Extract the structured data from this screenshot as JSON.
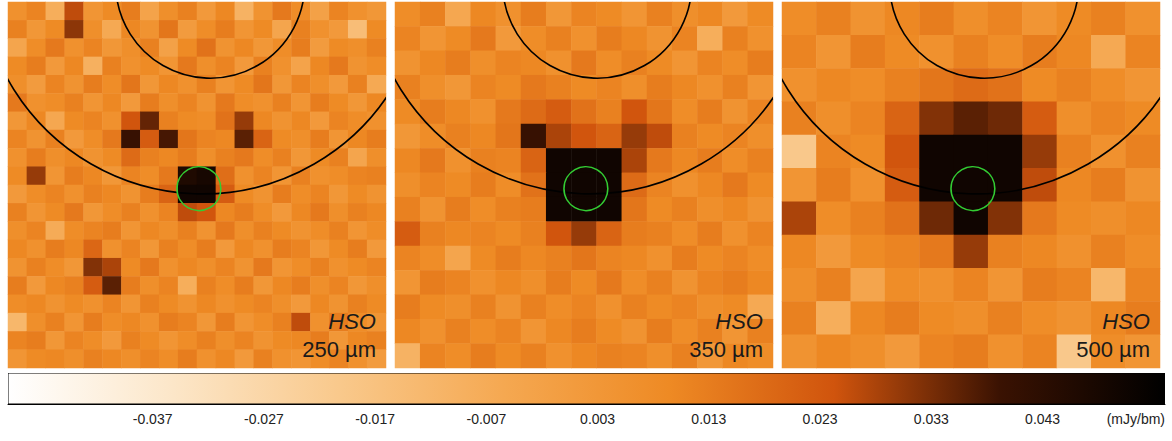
{
  "chart_data": {
    "type": "heatmap",
    "tick_labels": false,
    "panels": [
      {
        "labels": [
          "HSO",
          "250 µm"
        ],
        "cells": [
          [
            0.006,
            0.011,
            -0.008,
            0.026,
            0.004,
            0.009,
            0.013,
            -0.003,
            0.007,
            0.012,
            0.002,
            0.01,
            -0.01,
            0.005,
            0.014,
            0.008,
            -0.002,
            0.011,
            0.006,
            0.003
          ],
          [
            0.012,
            0.003,
            0.009,
            0.031,
            0.007,
            -0.006,
            0.01,
            0.005,
            0.015,
            0.001,
            0.008,
            0.013,
            0.004,
            0.009,
            -0.004,
            0.012,
            0.006,
            0.002,
            -0.015,
            0.009
          ],
          [
            -0.004,
            0.008,
            0.014,
            0.006,
            0.011,
            0.003,
            0.007,
            0.012,
            -0.002,
            0.009,
            0.016,
            0.005,
            0.01,
            0.003,
            0.008,
            0.013,
            0.001,
            0.009,
            0.007,
            0.012
          ],
          [
            0.009,
            0.013,
            0.002,
            0.01,
            -0.009,
            0.012,
            0.006,
            0.009,
            0.004,
            0.014,
            0.007,
            0.011,
            0.002,
            0.012,
            0.006,
            -0.003,
            0.01,
            0.014,
            0.005,
            0.008
          ],
          [
            0.007,
            0.001,
            0.011,
            0.005,
            0.013,
            0.008,
            0.015,
            0.003,
            0.01,
            0.006,
            0.012,
            0.004,
            0.009,
            0.015,
            0.003,
            0.011,
            0.007,
            0.002,
            0.012,
            -0.006
          ],
          [
            0.014,
            0.006,
            0.008,
            0.012,
            0.004,
            0.01,
            0.002,
            0.013,
            0.007,
            0.011,
            0.005,
            0.014,
            0.008,
            0.006,
            0.012,
            0.004,
            0.013,
            0.009,
            0.003,
            0.01
          ],
          [
            0.003,
            0.01,
            -0.005,
            0.009,
            0.011,
            0.006,
            0.024,
            0.035,
            0.012,
            0.009,
            0.008,
            0.016,
            0.03,
            0.01,
            0.005,
            0.01,
            0.002,
            0.011,
            0.008,
            0.006
          ],
          [
            0.011,
            0.005,
            0.012,
            0.002,
            0.008,
            0.014,
            0.04,
            0.022,
            0.038,
            0.015,
            0.011,
            0.01,
            0.036,
            0.02,
            0.009,
            0.007,
            0.013,
            0.004,
            0.01,
            0.013
          ],
          [
            0.006,
            0.013,
            0.007,
            0.01,
            0.005,
            0.009,
            0.018,
            0.012,
            0.01,
            0.013,
            0.007,
            0.012,
            0.014,
            0.008,
            0.012,
            0.003,
            0.009,
            0.012,
            -0.004,
            0.007
          ],
          [
            0.009,
            0.03,
            0.004,
            0.013,
            0.01,
            0.003,
            0.011,
            0.008,
            0.014,
            0.046,
            0.048,
            0.017,
            0.006,
            0.011,
            0.004,
            0.012,
            0.006,
            0.008,
            0.011,
            0.012
          ],
          [
            0.002,
            0.008,
            0.011,
            0.006,
            0.012,
            0.01,
            0.005,
            0.013,
            0.02,
            0.05,
            0.05,
            0.022,
            0.009,
            0.005,
            0.013,
            0.008,
            0.011,
            0.003,
            0.009,
            0.005
          ],
          [
            0.012,
            0.004,
            0.009,
            0.014,
            0.003,
            0.008,
            0.012,
            0.006,
            0.011,
            0.026,
            0.024,
            0.01,
            0.013,
            0.008,
            0.002,
            0.01,
            0.014,
            0.007,
            0.012,
            0.01
          ],
          [
            0.007,
            0.011,
            -0.007,
            0.008,
            0.011,
            0.013,
            0.004,
            0.01,
            0.007,
            0.012,
            0.005,
            0.014,
            0.007,
            0.012,
            0.009,
            0.005,
            0.008,
            0.012,
            0.004,
            0.008
          ],
          [
            0.01,
            0.006,
            0.013,
            0.01,
            0.019,
            0.006,
            0.011,
            0.003,
            0.012,
            0.008,
            0.013,
            0.002,
            0.01,
            0.006,
            0.013,
            0.011,
            0.003,
            0.009,
            0.013,
            0.002
          ],
          [
            0.005,
            0.012,
            0.008,
            0.003,
            0.032,
            0.028,
            0.009,
            0.014,
            0.006,
            0.01,
            0.007,
            0.011,
            0.005,
            0.014,
            0.004,
            0.008,
            0.012,
            0.006,
            0.009,
            0.011
          ],
          [
            0.013,
            0.002,
            0.01,
            0.012,
            0.022,
            0.036,
            0.013,
            0.007,
            0.011,
            -0.008,
            0.012,
            0.008,
            0.013,
            0.003,
            0.01,
            0.013,
            0.007,
            0.011,
            0.003,
            0.007
          ],
          [
            0.008,
            0.01,
            0.005,
            0.009,
            0.006,
            0.011,
            0.004,
            0.012,
            0.009,
            0.005,
            0.01,
            0.006,
            0.009,
            0.011,
            0.007,
            0.002,
            0.01,
            0.005,
            0.012,
            0.009
          ],
          [
            -0.012,
            0.007,
            0.012,
            0.004,
            0.013,
            0.008,
            0.01,
            0.006,
            0.013,
            0.011,
            0.003,
            0.013,
            0.004,
            0.008,
            0.012,
            0.026,
            0.006,
            0.013,
            0.008,
            0.004
          ],
          [
            0.011,
            0.013,
            0.003,
            0.011,
            0.008,
            0.002,
            0.012,
            0.009,
            0.004,
            0.008,
            0.012,
            0.007,
            0.011,
            0.005,
            0.009,
            0.01,
            0.013,
            0.003,
            0.01,
            0.012
          ],
          [
            0.004,
            0.009,
            0.01,
            0.007,
            0.012,
            0.01,
            0.007,
            0.011,
            0.008,
            0.013,
            0.006,
            0.01,
            0.002,
            0.012,
            0.006,
            0.004,
            0.008,
            0.011,
            0.006,
            0.001
          ]
        ]
      },
      {
        "labels": [
          "HSO",
          "350 µm"
        ],
        "cells": [
          [
            0.008,
            0.012,
            -0.005,
            0.01,
            0.006,
            0.013,
            0.003,
            0.011,
            0.009,
            0.004,
            0.012,
            0.007,
            0.01,
            0.002,
            0.009
          ],
          [
            0.011,
            0.004,
            0.009,
            0.014,
            0.002,
            0.008,
            0.012,
            0.006,
            0.013,
            0.01,
            0.005,
            0.011,
            -0.008,
            0.012,
            0.006
          ],
          [
            0.005,
            0.01,
            0.013,
            0.007,
            0.011,
            0.01,
            0.006,
            0.014,
            0.008,
            0.012,
            0.009,
            0.004,
            0.011,
            0.008,
            0.013
          ],
          [
            0.012,
            0.007,
            0.003,
            0.011,
            0.009,
            0.014,
            0.012,
            0.009,
            0.011,
            0.007,
            0.013,
            0.01,
            0.006,
            0.012,
            0.004
          ],
          [
            0.009,
            0.013,
            0.01,
            0.006,
            0.014,
            0.018,
            0.022,
            0.016,
            0.012,
            0.024,
            0.015,
            0.008,
            0.013,
            0.005,
            0.011
          ],
          [
            0.003,
            0.008,
            0.012,
            0.01,
            0.015,
            0.04,
            0.028,
            0.024,
            0.02,
            0.03,
            0.026,
            0.012,
            0.009,
            0.011,
            0.007
          ],
          [
            0.01,
            0.014,
            0.006,
            0.012,
            0.011,
            0.02,
            0.05,
            0.05,
            0.05,
            0.028,
            0.014,
            0.01,
            0.013,
            0.008,
            0.012
          ],
          [
            0.007,
            0.011,
            0.009,
            0.013,
            0.008,
            0.016,
            0.05,
            0.05,
            0.05,
            0.018,
            0.011,
            0.006,
            0.01,
            0.014,
            0.009
          ],
          [
            0.012,
            0.005,
            0.013,
            0.008,
            0.012,
            0.013,
            0.05,
            0.05,
            0.05,
            0.015,
            0.009,
            0.012,
            0.007,
            0.01,
            0.005
          ],
          [
            0.022,
            0.012,
            0.01,
            0.011,
            0.009,
            0.012,
            0.024,
            0.03,
            0.02,
            0.013,
            0.012,
            0.008,
            0.013,
            0.006,
            0.011
          ],
          [
            0.011,
            0.008,
            -0.004,
            0.009,
            0.013,
            0.01,
            0.012,
            0.015,
            0.011,
            0.01,
            0.006,
            0.013,
            0.009,
            0.011,
            0.008
          ],
          [
            0.004,
            0.013,
            0.011,
            0.006,
            0.01,
            0.007,
            0.013,
            0.009,
            0.014,
            0.008,
            0.012,
            0.005,
            0.011,
            0.013,
            0.01
          ],
          [
            0.013,
            0.009,
            0.007,
            0.012,
            0.005,
            0.012,
            0.008,
            0.011,
            0.006,
            0.012,
            0.009,
            0.011,
            0.007,
            0.009,
            -0.006
          ],
          [
            0.01,
            0.006,
            0.012,
            0.008,
            0.011,
            0.004,
            0.01,
            0.013,
            0.009,
            0.005,
            0.013,
            0.008,
            0.012,
            0.004,
            0.012
          ],
          [
            -0.01,
            0.011,
            0.008,
            0.013,
            0.009,
            0.012,
            0.006,
            0.01,
            0.012,
            0.011,
            0.007,
            0.012,
            0.003,
            0.01,
            0.008
          ]
        ]
      },
      {
        "labels": [
          "HSO",
          "500 µm"
        ],
        "cells": [
          [
            0.008,
            0.012,
            0.005,
            0.01,
            0.013,
            0.007,
            0.011,
            0.004,
            0.009,
            0.012,
            0.006
          ],
          [
            0.011,
            0.004,
            0.013,
            0.009,
            0.006,
            0.012,
            0.008,
            0.013,
            0.01,
            -0.006,
            0.011
          ],
          [
            0.006,
            0.01,
            0.008,
            0.012,
            0.015,
            0.018,
            0.016,
            0.009,
            0.012,
            0.008,
            0.004
          ],
          [
            0.012,
            0.007,
            0.011,
            0.02,
            0.032,
            0.036,
            0.034,
            0.022,
            0.007,
            0.011,
            0.009
          ],
          [
            -0.02,
            0.011,
            0.009,
            0.024,
            0.05,
            0.05,
            0.05,
            0.03,
            0.012,
            0.006,
            0.012
          ],
          [
            0.004,
            0.013,
            0.006,
            0.022,
            0.05,
            0.05,
            0.05,
            0.026,
            0.01,
            0.013,
            0.005
          ],
          [
            0.028,
            0.008,
            0.012,
            0.016,
            0.034,
            0.05,
            0.032,
            0.014,
            0.009,
            0.007,
            0.01
          ],
          [
            0.01,
            0.002,
            0.009,
            0.011,
            0.014,
            0.03,
            0.012,
            0.01,
            0.006,
            0.012,
            0.008
          ],
          [
            0.007,
            0.012,
            -0.004,
            0.008,
            0.006,
            0.011,
            0.004,
            0.013,
            0.011,
            -0.012,
            0.011
          ],
          [
            0.012,
            -0.008,
            0.01,
            0.013,
            0.009,
            0.007,
            0.012,
            0.008,
            0.005,
            0.01,
            0.013
          ],
          [
            0.005,
            0.01,
            0.007,
            0.002,
            0.011,
            0.013,
            0.006,
            0.011,
            -0.02,
            0.008,
            0.004
          ]
        ]
      }
    ],
    "colorbar": {
      "range": [
        -0.05,
        0.054
      ],
      "ticks": [
        -0.037,
        -0.027,
        -0.017,
        -0.007,
        0.003,
        0.013,
        0.023,
        0.033,
        0.043
      ],
      "label": "(mJy/bm)"
    }
  }
}
